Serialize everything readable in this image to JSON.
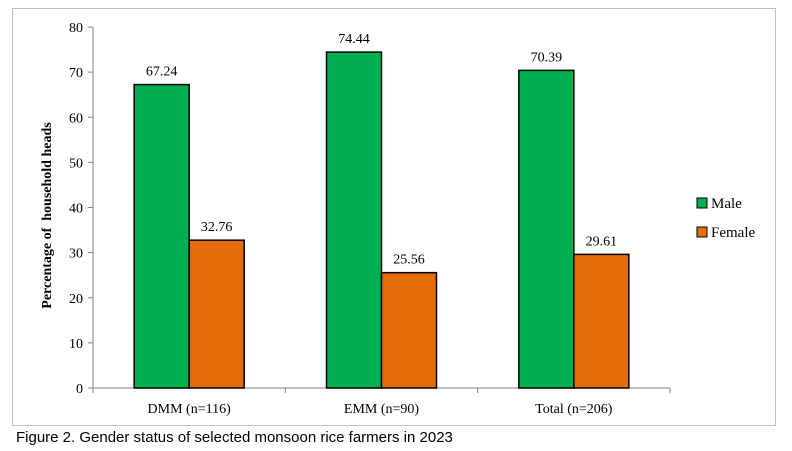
{
  "chart_data": {
    "type": "bar",
    "categories": [
      "DMM (n=116)",
      "EMM (n=90)",
      "Total (n=206)"
    ],
    "series": [
      {
        "name": "Male",
        "values": [
          67.24,
          74.44,
          70.39
        ],
        "value_labels": [
          "67.24",
          "74.44",
          "70.39"
        ],
        "color": "#00b050"
      },
      {
        "name": "Female",
        "values": [
          32.76,
          25.56,
          29.61
        ],
        "value_labels": [
          "32.76",
          "25.56",
          "29.61"
        ],
        "color": "#e46c0a"
      }
    ],
    "ylabel": "Percentage of  household heads",
    "ylim": [
      0,
      80
    ],
    "yticks": [
      0,
      10,
      20,
      30,
      40,
      50,
      60,
      70,
      80
    ],
    "grid": false,
    "legend_position": "right"
  },
  "caption": "Figure 2. Gender status of selected monsoon rice farmers in 2023"
}
